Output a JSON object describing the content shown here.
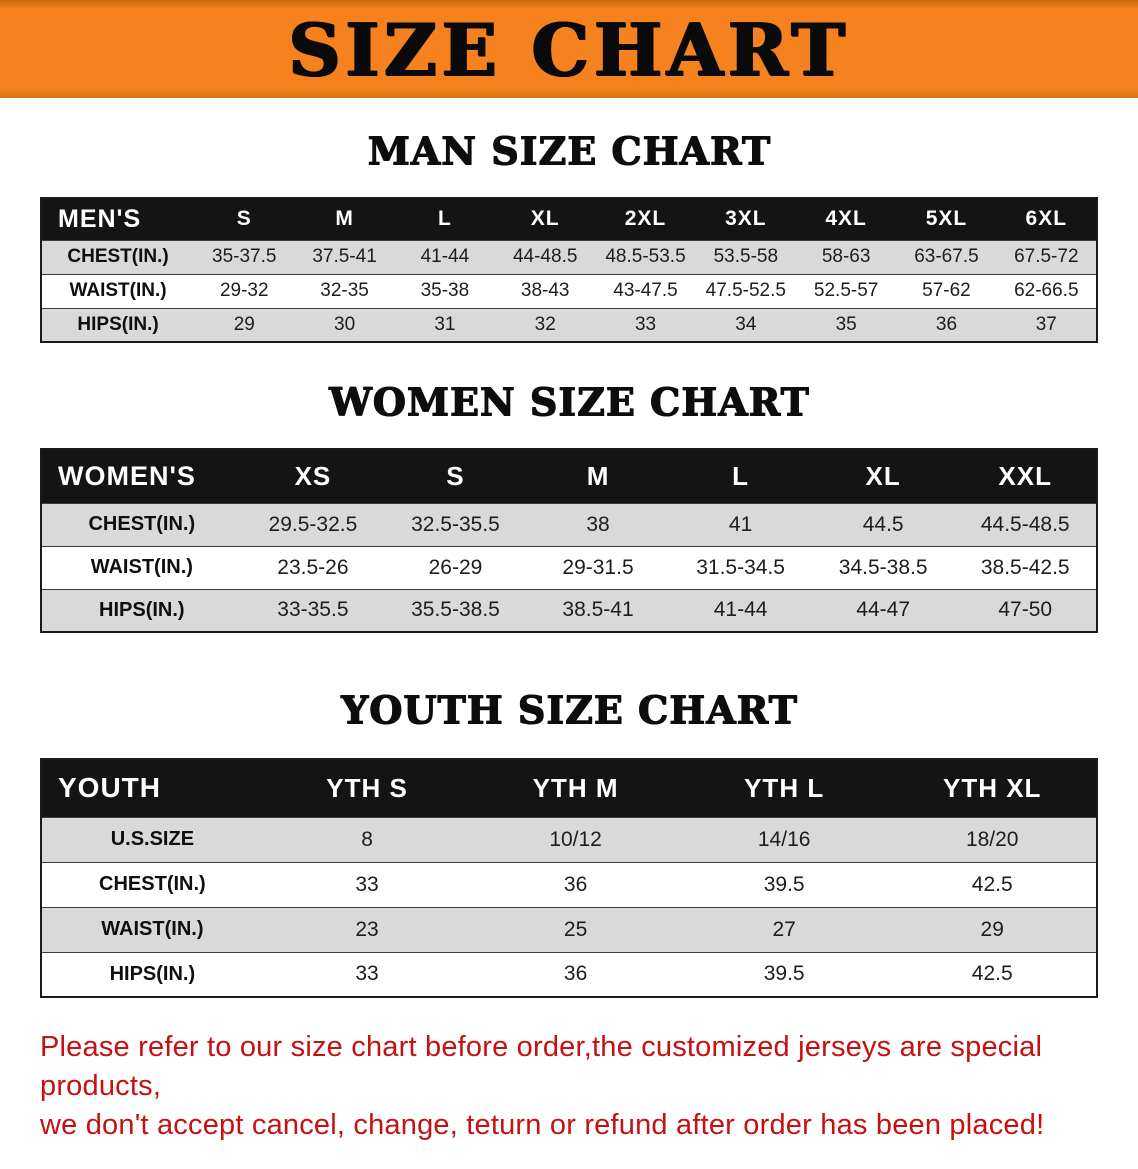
{
  "banner": {
    "title": "SIZE CHART"
  },
  "colors": {
    "banner-bg": "#f5821f",
    "header-bg": "#141414",
    "header-text": "#ffffff",
    "shaded-row": "#d9d9d9",
    "table-border": "#1a1a1a",
    "heading-text": "#0d0d0d",
    "disclaimer-red": "#c51111"
  },
  "sections": {
    "men": {
      "heading": "MAN SIZE CHART",
      "table": {
        "header_label": "MEN'S",
        "columns": [
          "S",
          "M",
          "L",
          "XL",
          "2XL",
          "3XL",
          "4XL",
          "5XL",
          "6XL"
        ],
        "rows": [
          {
            "label": "CHEST(IN.)",
            "values": [
              "35-37.5",
              "37.5-41",
              "41-44",
              "44-48.5",
              "48.5-53.5",
              "53.5-58",
              "58-63",
              "63-67.5",
              "67.5-72"
            ]
          },
          {
            "label": "WAIST(IN.)",
            "values": [
              "29-32",
              "32-35",
              "35-38",
              "38-43",
              "43-47.5",
              "47.5-52.5",
              "52.5-57",
              "57-62",
              "62-66.5"
            ]
          },
          {
            "label": "HIPS(IN.)",
            "values": [
              "29",
              "30",
              "31",
              "32",
              "33",
              "34",
              "35",
              "36",
              "37"
            ]
          }
        ]
      }
    },
    "women": {
      "heading": "WOMEN SIZE CHART",
      "table": {
        "header_label": "WOMEN'S",
        "columns": [
          "XS",
          "S",
          "M",
          "L",
          "XL",
          "XXL"
        ],
        "rows": [
          {
            "label": "CHEST(IN.)",
            "values": [
              "29.5-32.5",
              "32.5-35.5",
              "38",
              "41",
              "44.5",
              "44.5-48.5"
            ]
          },
          {
            "label": "WAIST(IN.)",
            "values": [
              "23.5-26",
              "26-29",
              "29-31.5",
              "31.5-34.5",
              "34.5-38.5",
              "38.5-42.5"
            ]
          },
          {
            "label": "HIPS(IN.)",
            "values": [
              "33-35.5",
              "35.5-38.5",
              "38.5-41",
              "41-44",
              "44-47",
              "47-50"
            ]
          }
        ]
      }
    },
    "youth": {
      "heading": "YOUTH SIZE CHART",
      "table": {
        "header_label": "YOUTH",
        "columns": [
          "YTH S",
          "YTH M",
          "YTH L",
          "YTH XL"
        ],
        "rows": [
          {
            "label": "U.S.SIZE",
            "values": [
              "8",
              "10/12",
              "14/16",
              "18/20"
            ]
          },
          {
            "label": "CHEST(IN.)",
            "values": [
              "33",
              "36",
              "39.5",
              "42.5"
            ]
          },
          {
            "label": "WAIST(IN.)",
            "values": [
              "23",
              "25",
              "27",
              "29"
            ]
          },
          {
            "label": "HIPS(IN.)",
            "values": [
              "33",
              "36",
              "39.5",
              "42.5"
            ]
          }
        ]
      }
    }
  },
  "disclaimer": {
    "line1": "Please refer to our size chart before order,the customized jerseys are special products,",
    "line2": "we don't accept cancel, change, teturn or refund after order has been placed!"
  }
}
